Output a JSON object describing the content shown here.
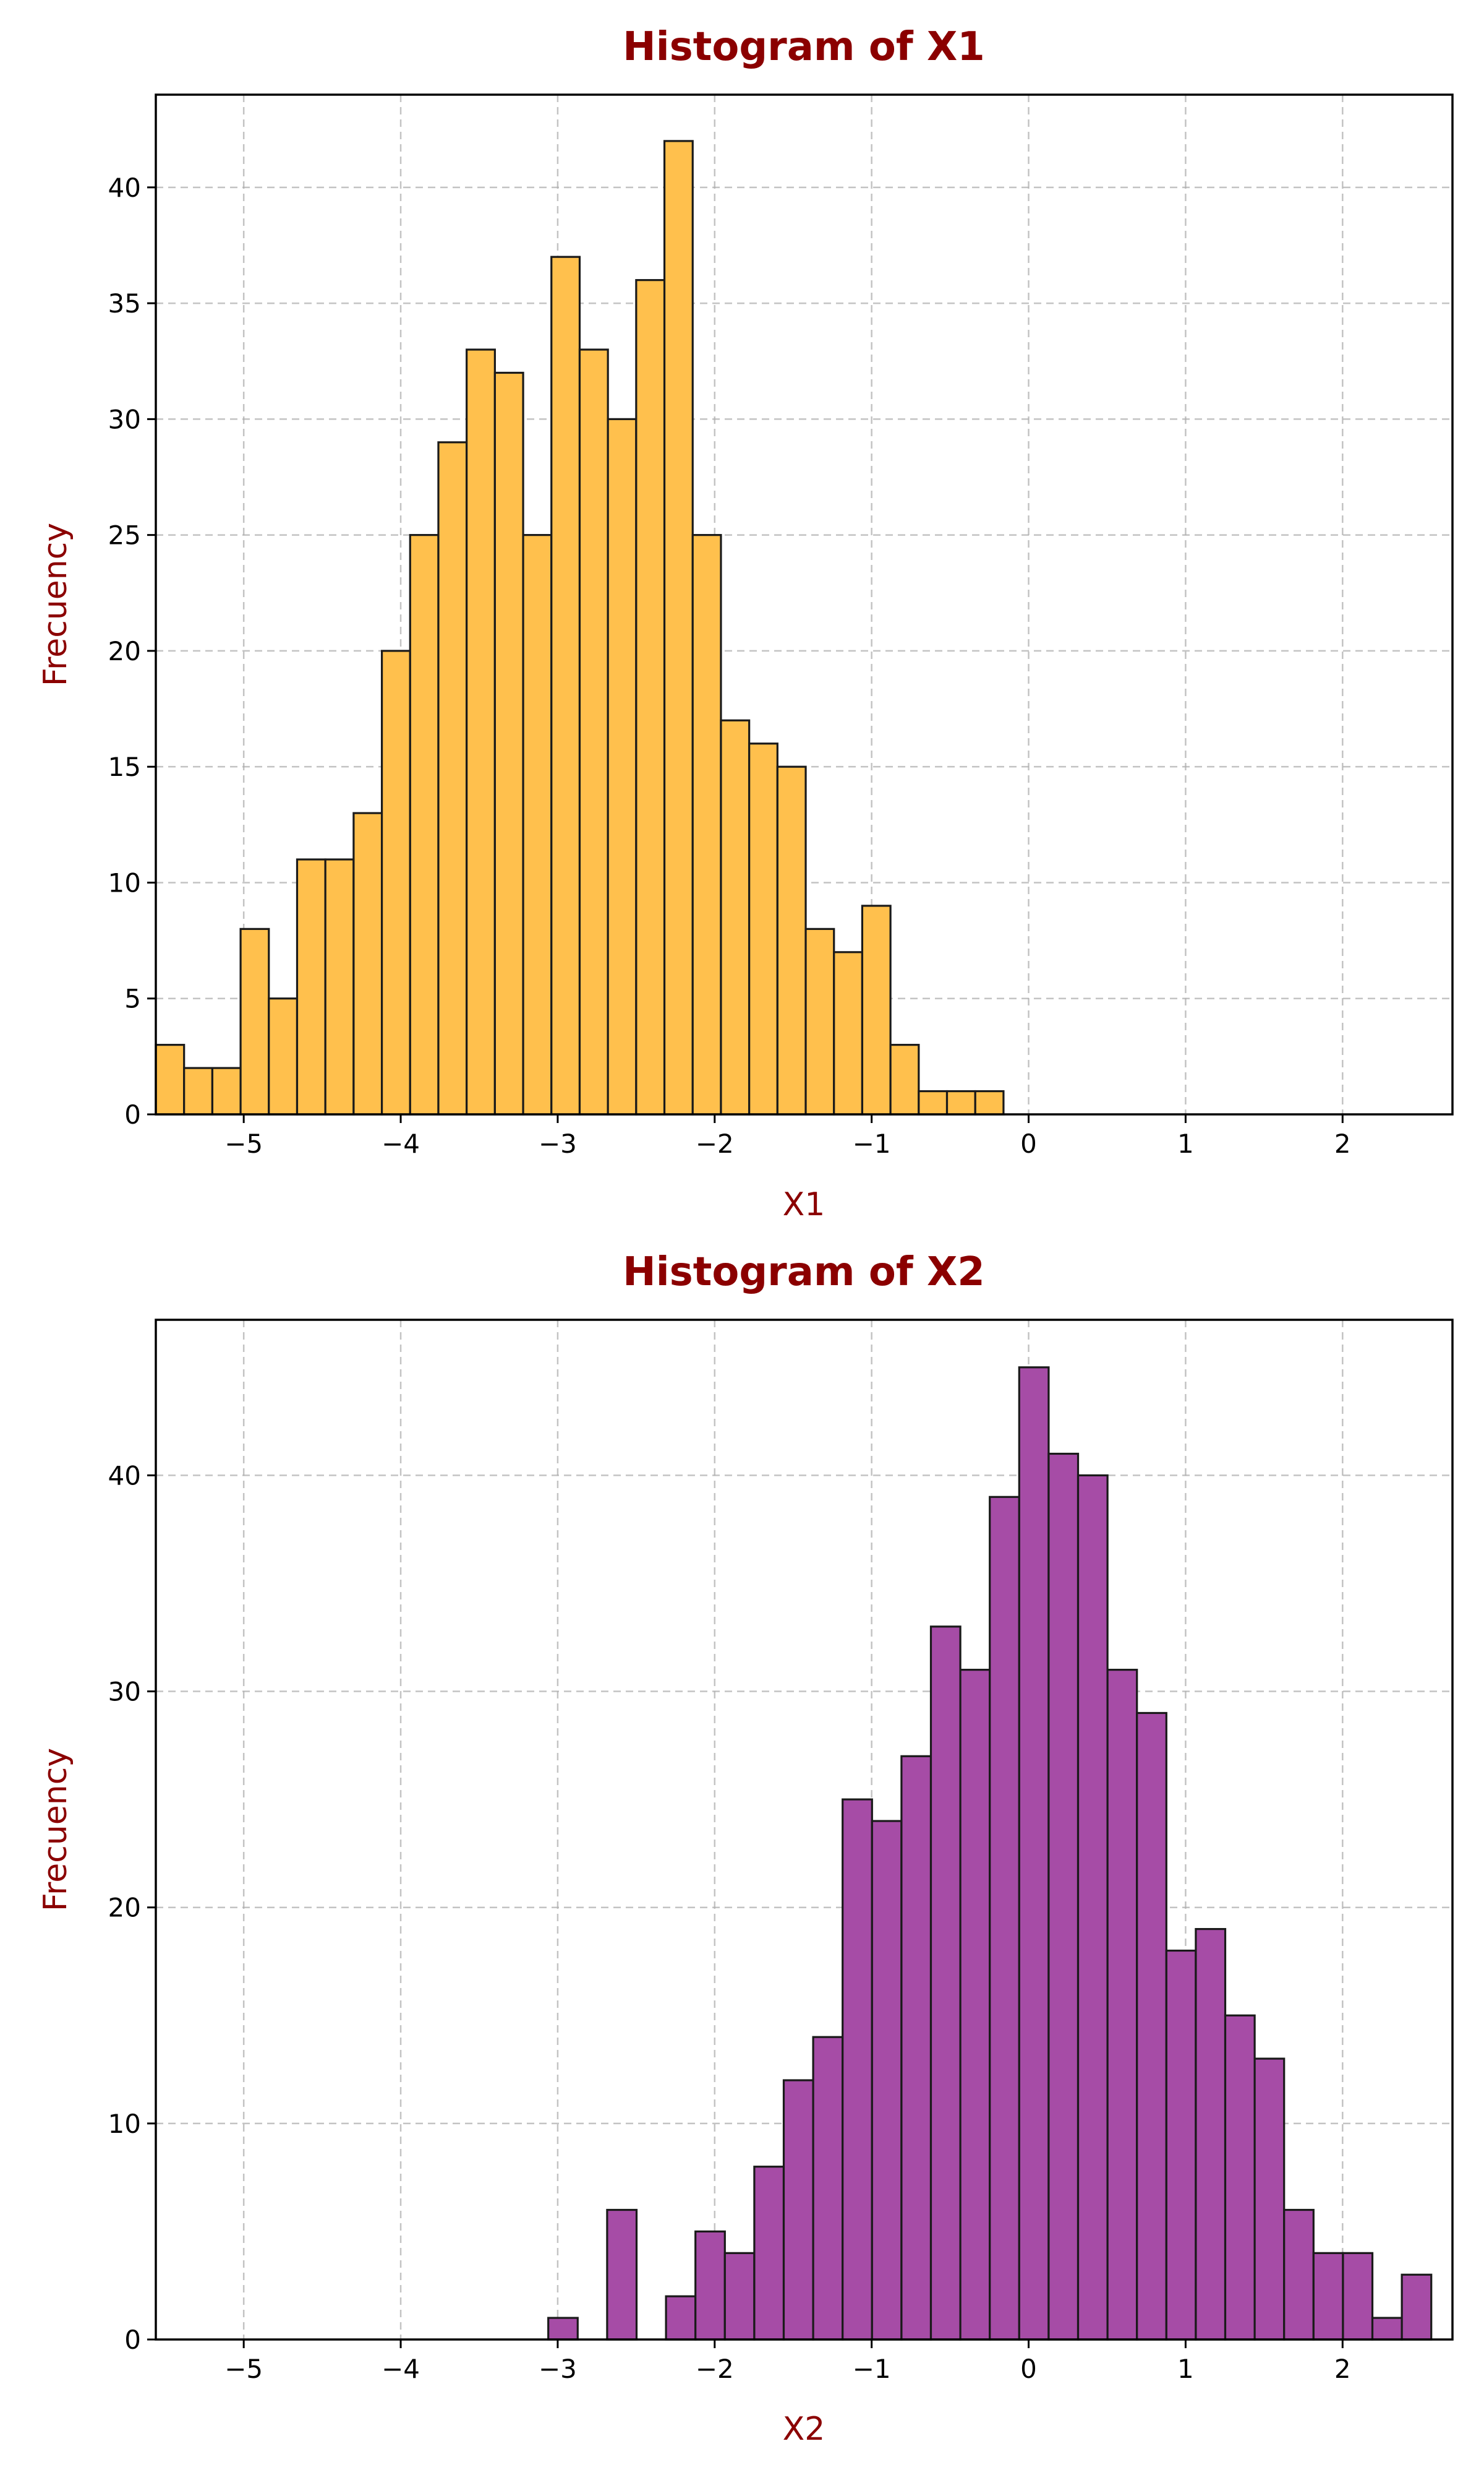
{
  "colors": {
    "title": "#8b0000",
    "axis_label": "#8b0000",
    "x1_bar_fill": "#ffc04d",
    "x2_bar_fill": "#a64ca6",
    "bar_edge": "#1a1a1a"
  },
  "chart_data": [
    {
      "type": "bar",
      "title": "Histogram of X1",
      "xlabel": "X1",
      "ylabel": "Frecuency",
      "xlim": [
        -5.56,
        2.7
      ],
      "ylim": [
        0,
        44
      ],
      "grid": true,
      "xticks": [
        -5,
        -4,
        -3,
        -2,
        -1,
        0,
        1,
        2
      ],
      "xtick_labels": [
        "−5",
        "−4",
        "−3",
        "−2",
        "−1",
        "0",
        "1",
        "2"
      ],
      "yticks": [
        0,
        5,
        10,
        15,
        20,
        25,
        30,
        35,
        40
      ],
      "bin_start": -5.56,
      "bin_width": 0.18,
      "values": [
        3,
        2,
        2,
        8,
        5,
        11,
        11,
        13,
        20,
        25,
        29,
        33,
        32,
        25,
        37,
        33,
        30,
        36,
        42,
        25,
        17,
        16,
        15,
        8,
        7,
        9,
        3,
        1,
        1,
        1
      ]
    },
    {
      "type": "bar",
      "title": "Histogram of X2",
      "xlabel": "X2",
      "ylabel": "Frecuency",
      "xlim": [
        -5.56,
        2.7
      ],
      "ylim": [
        0,
        47.2
      ],
      "grid": true,
      "xticks": [
        -5,
        -4,
        -3,
        -2,
        -1,
        0,
        1,
        2
      ],
      "xtick_labels": [
        "−5",
        "−4",
        "−3",
        "−2",
        "−1",
        "0",
        "1",
        "2"
      ],
      "yticks": [
        0,
        10,
        20,
        30,
        40
      ],
      "bin_start": -3.06,
      "bin_width": 0.1875,
      "values": [
        1,
        0,
        6,
        0,
        2,
        5,
        4,
        8,
        12,
        14,
        25,
        24,
        27,
        33,
        31,
        39,
        45,
        41,
        40,
        31,
        29,
        18,
        19,
        15,
        13,
        6,
        4,
        4,
        1,
        3
      ]
    }
  ]
}
